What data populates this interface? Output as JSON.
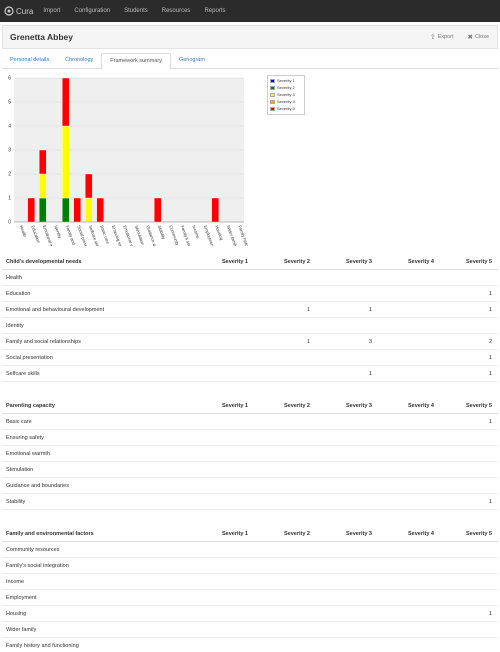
{
  "nav": {
    "brand": "Cura",
    "items": [
      "Import",
      "Configuration",
      "Students",
      "Resources",
      "Reports"
    ]
  },
  "header": {
    "title": "Grenetta Abbey",
    "export_label": "Export",
    "close_label": "Close"
  },
  "tabs": [
    {
      "label": "Personal details",
      "active": false
    },
    {
      "label": "Chronology",
      "active": false
    },
    {
      "label": "Framework summary",
      "active": true
    },
    {
      "label": "Genogram",
      "active": false
    }
  ],
  "chart_data": {
    "type": "bar",
    "stacked": true,
    "ylim": [
      0,
      6
    ],
    "yticks": [
      0,
      1,
      2,
      3,
      4,
      5,
      6
    ],
    "categories": [
      "Health",
      "Education",
      "Emotional and behavioural development",
      "Identity",
      "Family and social relationships",
      "Social presentation",
      "Selfcare skills",
      "Basic care",
      "Ensuring safety",
      "Emotional warmth",
      "Stimulation",
      "Guidance and boundaries",
      "Stability",
      "Community resources",
      "Family's social integration",
      "Income",
      "Employment",
      "Housing",
      "Wider family",
      "Family history and functioning"
    ],
    "series": [
      {
        "name": "Severity 1",
        "color": "#0000ff",
        "values": [
          0,
          0,
          0,
          0,
          0,
          0,
          0,
          0,
          0,
          0,
          0,
          0,
          0,
          0,
          0,
          0,
          0,
          0,
          0,
          0
        ]
      },
      {
        "name": "Severity 2",
        "color": "#008000",
        "values": [
          0,
          0,
          1,
          0,
          1,
          0,
          0,
          0,
          0,
          0,
          0,
          0,
          0,
          0,
          0,
          0,
          0,
          0,
          0,
          0
        ]
      },
      {
        "name": "Severity 3",
        "color": "#ffff00",
        "values": [
          0,
          0,
          1,
          0,
          3,
          0,
          1,
          0,
          0,
          0,
          0,
          0,
          0,
          0,
          0,
          0,
          0,
          0,
          0,
          0
        ]
      },
      {
        "name": "Severity 4",
        "color": "#ffa500",
        "values": [
          0,
          0,
          0,
          0,
          0,
          0,
          0,
          0,
          0,
          0,
          0,
          0,
          0,
          0,
          0,
          0,
          0,
          0,
          0,
          0
        ]
      },
      {
        "name": "Severity 5",
        "color": "#ff0000",
        "values": [
          0,
          1,
          1,
          0,
          2,
          1,
          1,
          1,
          0,
          0,
          0,
          0,
          1,
          0,
          0,
          0,
          0,
          1,
          0,
          0
        ]
      }
    ],
    "grid": true,
    "legend": "right"
  },
  "tables": [
    {
      "title": "Child's developmental needs",
      "columns": [
        "Severity 1",
        "Severity 2",
        "Severity 3",
        "Severity 4",
        "Severity 5"
      ],
      "rows": [
        {
          "label": "Health",
          "cells": [
            "",
            "",
            "",
            "",
            ""
          ]
        },
        {
          "label": "Education",
          "cells": [
            "",
            "",
            "",
            "",
            "1"
          ]
        },
        {
          "label": "Emotional and behavioural development",
          "cells": [
            "",
            "1",
            "1",
            "",
            "1"
          ]
        },
        {
          "label": "Identity",
          "cells": [
            "",
            "",
            "",
            "",
            ""
          ]
        },
        {
          "label": "Family and social relationships",
          "cells": [
            "",
            "1",
            "3",
            "",
            "2"
          ]
        },
        {
          "label": "Social presentation",
          "cells": [
            "",
            "",
            "",
            "",
            "1"
          ]
        },
        {
          "label": "Selfcare skills",
          "cells": [
            "",
            "",
            "1",
            "",
            "1"
          ]
        }
      ]
    },
    {
      "title": "Parenting capacity",
      "columns": [
        "Severity 1",
        "Severity 2",
        "Severity 3",
        "Severity 4",
        "Severity 5"
      ],
      "rows": [
        {
          "label": "Basic care",
          "cells": [
            "",
            "",
            "",
            "",
            "1"
          ]
        },
        {
          "label": "Ensuring safety",
          "cells": [
            "",
            "",
            "",
            "",
            ""
          ]
        },
        {
          "label": "Emotional warmth",
          "cells": [
            "",
            "",
            "",
            "",
            ""
          ]
        },
        {
          "label": "Stimulation",
          "cells": [
            "",
            "",
            "",
            "",
            ""
          ]
        },
        {
          "label": "Guidance and boundaries",
          "cells": [
            "",
            "",
            "",
            "",
            ""
          ]
        },
        {
          "label": "Stability",
          "cells": [
            "",
            "",
            "",
            "",
            "1"
          ]
        }
      ]
    },
    {
      "title": "Family and environmental factors",
      "columns": [
        "Severity 1",
        "Severity 2",
        "Severity 3",
        "Severity 4",
        "Severity 5"
      ],
      "rows": [
        {
          "label": "Community resources",
          "cells": [
            "",
            "",
            "",
            "",
            ""
          ]
        },
        {
          "label": "Family's social integration",
          "cells": [
            "",
            "",
            "",
            "",
            ""
          ]
        },
        {
          "label": "Income",
          "cells": [
            "",
            "",
            "",
            "",
            ""
          ]
        },
        {
          "label": "Employment",
          "cells": [
            "",
            "",
            "",
            "",
            ""
          ]
        },
        {
          "label": "Housing",
          "cells": [
            "",
            "",
            "",
            "",
            "1"
          ]
        },
        {
          "label": "Wider family",
          "cells": [
            "",
            "",
            "",
            "",
            ""
          ]
        },
        {
          "label": "Family history and functioning",
          "cells": [
            "",
            "",
            "",
            "",
            ""
          ]
        }
      ]
    }
  ]
}
